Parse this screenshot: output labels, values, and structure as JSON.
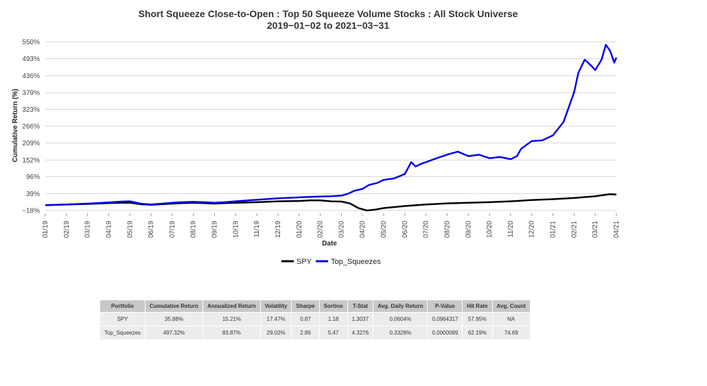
{
  "chart_data": {
    "type": "line",
    "title": "Short Squeeze Close-to-Open : Top 50 Squeeze Volume Stocks : All Stock Universe",
    "subtitle": "2019−01−02 to 2021−03−31",
    "xlabel": "Date",
    "ylabel": "Cumulative Return (%)",
    "ylim": [
      -18,
      550
    ],
    "yticks": [
      -18,
      39,
      96,
      152,
      209,
      266,
      323,
      379,
      436,
      493,
      550
    ],
    "ytick_labels": [
      "−18%",
      "39%",
      "96%",
      "152%",
      "209%",
      "266%",
      "323%",
      "379%",
      "436%",
      "493%",
      "550%"
    ],
    "xlim": [
      0,
      27
    ],
    "xticks": [
      0,
      1,
      2,
      3,
      4,
      5,
      6,
      7,
      8,
      9,
      10,
      11,
      12,
      13,
      14,
      15,
      16,
      17,
      18,
      19,
      20,
      21,
      22,
      23,
      24,
      25,
      26,
      27
    ],
    "xtick_labels": [
      "01/19",
      "02/19",
      "03/19",
      "04/19",
      "05/19",
      "06/19",
      "07/19",
      "08/19",
      "09/19",
      "10/19",
      "11/19",
      "12/19",
      "01/20",
      "02/20",
      "03/20",
      "04/20",
      "05/20",
      "06/20",
      "07/20",
      "08/20",
      "09/20",
      "10/20",
      "11/20",
      "12/20",
      "01/21",
      "02/21",
      "03/21",
      "04/21"
    ],
    "grid": true,
    "legend_position": "bottom-center",
    "series": [
      {
        "name": "SPY",
        "color": "#000000",
        "x": [
          0,
          1,
          2,
          3,
          3.6,
          4,
          4.5,
          5,
          5.5,
          6,
          6.5,
          7,
          7.5,
          8,
          8.5,
          9,
          10,
          11,
          12,
          12.5,
          13,
          13.5,
          14,
          14.4,
          14.8,
          15.2,
          15.6,
          16,
          17,
          18,
          19,
          20,
          21,
          22,
          22.5,
          23,
          24,
          25,
          25.5,
          26,
          26.3,
          26.7,
          27
        ],
        "values": [
          0,
          2,
          4,
          7,
          8,
          8,
          3,
          1,
          3,
          5,
          7,
          8,
          7,
          5,
          7,
          8,
          10,
          13,
          14,
          16,
          16,
          13,
          12,
          6,
          -10,
          -18,
          -15,
          -10,
          -3,
          2,
          6,
          8,
          10,
          13,
          15,
          17,
          20,
          24,
          27,
          30,
          33,
          37,
          35.88
        ]
      },
      {
        "name": "Top_Squeezes",
        "color": "#0000ee",
        "x": [
          0,
          1,
          2,
          3,
          3.6,
          4,
          4.5,
          5,
          5.5,
          6,
          6.5,
          7,
          7.5,
          8,
          8.5,
          9,
          10,
          11,
          12,
          12.5,
          13,
          13.5,
          14,
          14.3,
          14.6,
          15,
          15.3,
          15.7,
          16,
          16.5,
          17,
          17.3,
          17.5,
          17.8,
          18,
          18.5,
          19,
          19.5,
          20,
          20.5,
          21,
          21.5,
          22,
          22.3,
          22.5,
          23,
          23.5,
          24,
          24.5,
          25,
          25.2,
          25.5,
          25.8,
          26,
          26.3,
          26.5,
          26.7,
          26.9,
          27
        ],
        "values": [
          0,
          2,
          5,
          9,
          12,
          13,
          5,
          2,
          5,
          8,
          10,
          11,
          10,
          8,
          10,
          13,
          18,
          23,
          26,
          28,
          29,
          30,
          32,
          38,
          48,
          55,
          68,
          75,
          85,
          90,
          105,
          145,
          130,
          140,
          145,
          158,
          170,
          180,
          165,
          170,
          158,
          162,
          155,
          165,
          190,
          216,
          218,
          235,
          280,
          380,
          445,
          490,
          470,
          455,
          490,
          540,
          520,
          480,
          497.32
        ]
      }
    ]
  },
  "legend": {
    "items": [
      {
        "label": "SPY",
        "color": "#000000"
      },
      {
        "label": "Top_Squeezes",
        "color": "#0000ee"
      }
    ]
  },
  "stats_table": {
    "headers": [
      "Portfolio",
      "Cumulative Return",
      "Annualized Return",
      "Volatility",
      "Sharpe",
      "Sortino",
      "T-Stat",
      "Avg. Daily Return",
      "P-Value",
      "Hit Rate",
      "Avg. Count"
    ],
    "rows": [
      [
        "SPY",
        "35.88%",
        "15.21%",
        "17.47%",
        "0.87",
        "1.18",
        "1.3037",
        "0.0604%",
        "0.0964317",
        "57.95%",
        "NA"
      ],
      [
        "Top_Squeezes",
        "497.32%",
        "83.87%",
        "29.02%",
        "2.89",
        "5.47",
        "4.3276",
        "0.3328%",
        "0.0000089",
        "62.19%",
        "74.69"
      ]
    ]
  }
}
